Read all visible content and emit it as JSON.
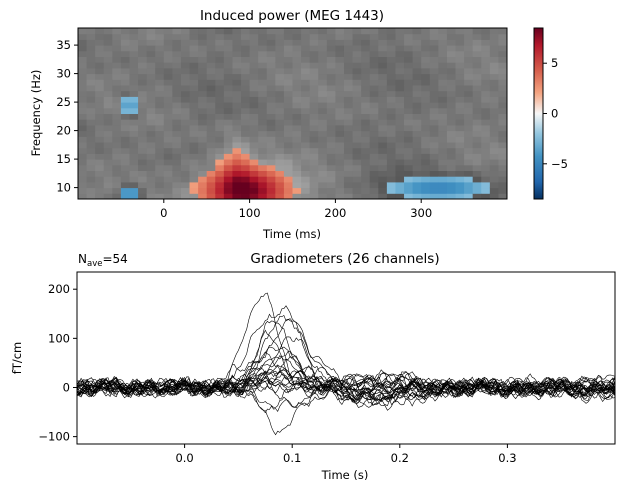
{
  "chart_data": [
    {
      "type": "heatmap",
      "title": "Induced power (MEG 1443)",
      "xlabel": "Time (ms)",
      "ylabel": "Frequency (Hz)",
      "xlim": [
        -100,
        400
      ],
      "ylim": [
        8,
        38
      ],
      "xticks": [
        0,
        100,
        200,
        300
      ],
      "yticks": [
        10,
        15,
        20,
        25,
        30,
        35
      ],
      "colorbar": {
        "min": -8.5,
        "max": 8.5,
        "ticks": [
          -5,
          0,
          5
        ]
      },
      "blobs": [
        {
          "t": 95,
          "f": 9.5,
          "st": 38,
          "sf": 3.2,
          "amp": 8.4
        },
        {
          "t": 85,
          "f": 15,
          "st": 12,
          "sf": 4,
          "amp": 2.0
        },
        {
          "t": 320,
          "f": 10.0,
          "st": 48,
          "sf": 1.6,
          "amp": -5.0
        },
        {
          "t": -40,
          "f": 9.0,
          "st": 10,
          "sf": 1.2,
          "amp": -5.0
        },
        {
          "t": -40,
          "f": 24.5,
          "st": 7,
          "sf": 1.5,
          "amp": -4.5
        }
      ],
      "grid": false
    },
    {
      "type": "line",
      "title": "Gradiometers (26 channels)",
      "nave_label": "N",
      "nave_sub": "ave",
      "nave_value": "=54",
      "xlabel": "Time (s)",
      "ylabel": "fT/cm",
      "xlim": [
        -0.1,
        0.4
      ],
      "ylim": [
        -115,
        235
      ],
      "xticks": [
        0.0,
        0.1,
        0.2,
        0.3
      ],
      "yticks": [
        -100,
        0,
        100,
        200
      ],
      "n_channels": 26,
      "peak_time": 0.085,
      "peak_max": 215,
      "trough_min": -100,
      "grid": false
    }
  ]
}
